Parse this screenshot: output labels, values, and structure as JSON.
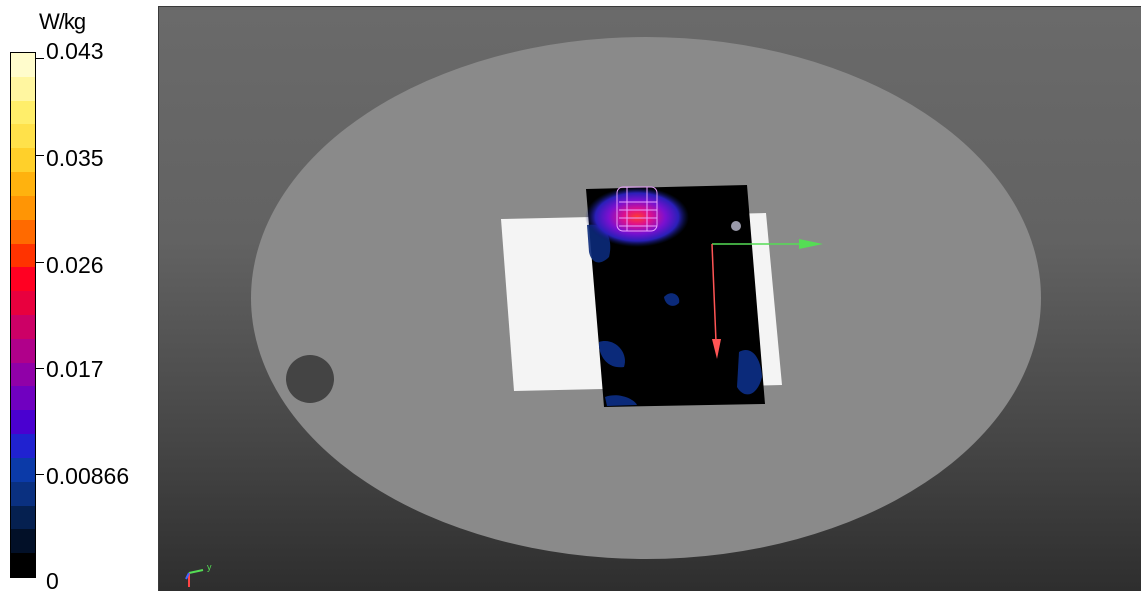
{
  "legend": {
    "unit": "W/kg",
    "ticks": [
      "0.043",
      "0.035",
      "0.026",
      "0.017",
      "0.00866",
      "0"
    ],
    "colors": [
      "#fffccc",
      "#fff6a0",
      "#ffee6a",
      "#ffe14a",
      "#ffd02a",
      "#ffb20e",
      "#ff9505",
      "#ff6a00",
      "#ff3300",
      "#ff0022",
      "#e8003e",
      "#cc0066",
      "#b0008a",
      "#9000a8",
      "#7000c0",
      "#4a00d0",
      "#2022d0",
      "#0b3aa8",
      "#0a3080",
      "#052050",
      "#021028",
      "#000000"
    ]
  },
  "viewport": {
    "background_top": "#6a6a6a",
    "background_bottom": "#2e2e2e",
    "phantom_color": "#8a8a8a",
    "plate_color": "#f4f4f4",
    "field_color": "#000000",
    "axis_x_color": "#ff5555",
    "axis_y_color": "#55dd55",
    "triad_labels": {
      "y": "y",
      "x": "x"
    }
  }
}
